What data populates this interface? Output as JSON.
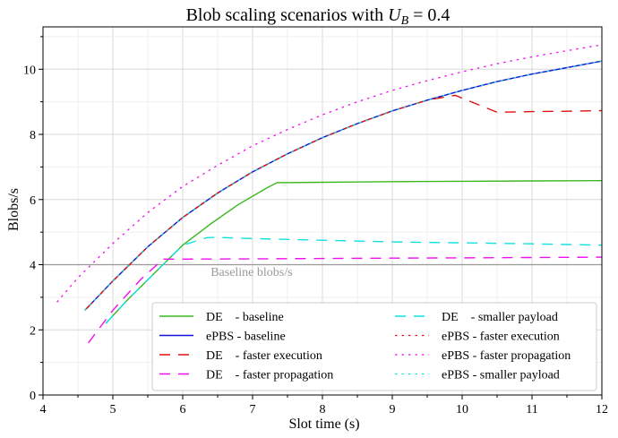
{
  "chart_data": {
    "type": "line",
    "title": "Blob scaling scenarios with U_B = 0.4",
    "title_parts": {
      "prefix": "Blob scaling scenarios with ",
      "var": "U",
      "sub": "B",
      "suffix": " = 0.4"
    },
    "xlabel": "Slot time (s)",
    "ylabel": "Blobs/s",
    "xlim": [
      4,
      12
    ],
    "ylim": [
      0,
      11.3
    ],
    "xticks": [
      4,
      5,
      6,
      7,
      8,
      9,
      10,
      11,
      12
    ],
    "yticks": [
      0,
      2,
      4,
      6,
      8,
      10
    ],
    "grid": true,
    "legend_position": "lower-right",
    "legend_columns": 2,
    "annotations": [
      {
        "text": "Baseline blobs/s",
        "x": 6.4,
        "y": 3.65
      }
    ],
    "reference_lines": [
      {
        "y": 4,
        "color": "#999999"
      }
    ],
    "series": [
      {
        "name": "DE    - baseline",
        "color": "#3cb81e",
        "dash": "solid",
        "x": [
          4.9,
          5.2,
          5.6,
          6.0,
          6.4,
          6.8,
          7.2,
          7.35,
          8,
          9,
          10,
          11,
          12
        ],
        "y": [
          2.2,
          2.9,
          3.75,
          4.6,
          5.25,
          5.85,
          6.35,
          6.52,
          6.53,
          6.55,
          6.56,
          6.57,
          6.58
        ]
      },
      {
        "name": "ePBS - baseline",
        "color": "#1010dd",
        "dash": "solid",
        "x": [
          4.6,
          5.0,
          5.5,
          6.0,
          6.5,
          7.0,
          7.5,
          8.0,
          8.5,
          9.0,
          9.5,
          10.0,
          10.5,
          11.0,
          11.5,
          12.0
        ],
        "y": [
          2.6,
          3.5,
          4.55,
          5.45,
          6.2,
          6.85,
          7.4,
          7.9,
          8.33,
          8.72,
          9.05,
          9.35,
          9.62,
          9.85,
          10.05,
          10.25
        ]
      },
      {
        "name": "DE    - faster execution",
        "color": "#e01010",
        "dash": "long",
        "x": [
          4.6,
          5.0,
          5.5,
          6.0,
          6.5,
          7.0,
          7.5,
          8.0,
          8.5,
          9.0,
          9.5,
          9.9,
          10.5,
          11.0,
          11.5,
          12.0
        ],
        "y": [
          2.6,
          3.5,
          4.55,
          5.45,
          6.2,
          6.85,
          7.4,
          7.9,
          8.33,
          8.72,
          9.05,
          9.2,
          8.68,
          8.7,
          8.71,
          8.73
        ]
      },
      {
        "name": "DE    - faster propagation",
        "color": "#ee10ee",
        "dash": "long",
        "x": [
          4.65,
          5.0,
          5.4,
          5.72,
          6.0,
          7.0,
          8.0,
          9.0,
          10.0,
          11.0,
          12.0
        ],
        "y": [
          1.6,
          2.6,
          3.55,
          4.17,
          4.17,
          4.18,
          4.19,
          4.2,
          4.21,
          4.22,
          4.23
        ]
      },
      {
        "name": "DE    - smaller payload",
        "color": "#10e0e0",
        "dash": "long",
        "x": [
          4.9,
          5.2,
          5.6,
          6.0,
          6.35,
          6.5,
          7.0,
          8.0,
          9.0,
          10.0,
          11.0,
          12.0
        ],
        "y": [
          2.2,
          2.9,
          3.75,
          4.6,
          4.83,
          4.84,
          4.8,
          4.75,
          4.7,
          4.67,
          4.64,
          4.6
        ]
      },
      {
        "name": "ePBS - faster execution",
        "color": "#e01010",
        "dash": "dotted",
        "x": [
          4.6,
          5.0,
          5.5,
          6.0,
          6.5,
          7.0,
          7.5,
          8.0,
          8.5,
          9.0,
          9.5,
          10.0,
          10.5,
          11.0,
          11.5,
          12.0
        ],
        "y": [
          2.6,
          3.5,
          4.55,
          5.45,
          6.2,
          6.85,
          7.4,
          7.9,
          8.33,
          8.72,
          9.05,
          9.35,
          9.62,
          9.85,
          10.05,
          10.25
        ]
      },
      {
        "name": "ePBS - faster propagation",
        "color": "#ee10ee",
        "dash": "dotted",
        "x": [
          4.2,
          4.5,
          5.0,
          5.5,
          6.0,
          6.5,
          7.0,
          7.5,
          8.0,
          8.5,
          9.0,
          9.5,
          10.0,
          10.5,
          11.0,
          11.5,
          12.0
        ],
        "y": [
          2.85,
          3.6,
          4.65,
          5.6,
          6.4,
          7.05,
          7.65,
          8.15,
          8.6,
          9.0,
          9.35,
          9.65,
          9.92,
          10.17,
          10.38,
          10.57,
          10.75
        ]
      },
      {
        "name": "ePBS - smaller payload",
        "color": "#10e0e0",
        "dash": "dotted",
        "x": [
          4.6,
          5.0,
          5.5,
          6.0,
          6.5,
          7.0,
          7.5,
          8.0,
          8.5,
          9.0,
          9.5,
          10.0,
          10.5,
          11.0,
          11.5,
          12.0
        ],
        "y": [
          2.6,
          3.5,
          4.55,
          5.45,
          6.2,
          6.85,
          7.4,
          7.9,
          8.33,
          8.72,
          9.05,
          9.35,
          9.62,
          9.85,
          10.05,
          10.25
        ]
      }
    ]
  }
}
